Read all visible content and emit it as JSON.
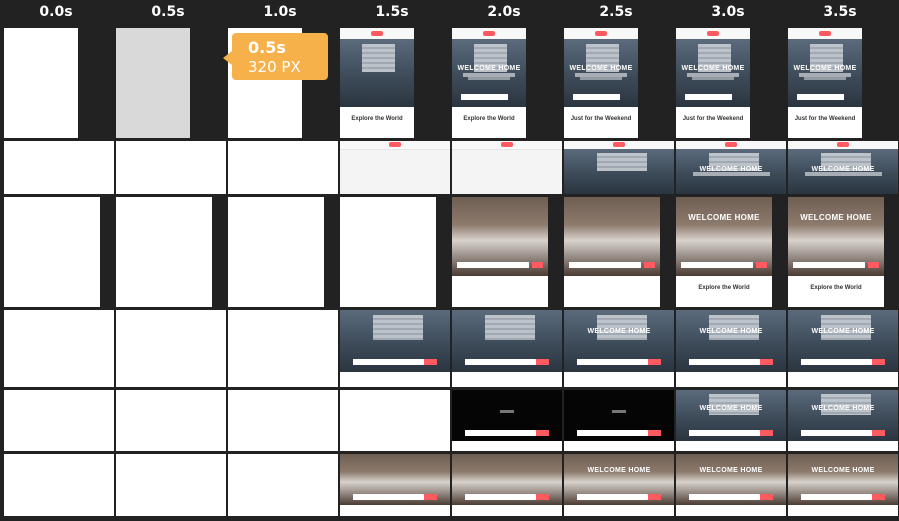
{
  "timeline": {
    "labels": [
      "0.0s",
      "0.5s",
      "1.0s",
      "1.5s",
      "2.0s",
      "2.5s",
      "3.0s",
      "3.5s"
    ]
  },
  "tooltip": {
    "time": "0.5s",
    "width": "320 PX"
  },
  "frames": {
    "headline": "WELCOME HOME",
    "below_text_a": "Explore the World",
    "below_text_b": "Just for the Weekend"
  },
  "colors": {
    "background": "#222222",
    "tooltip": "#f7b14a",
    "brand": "#ff5a5f"
  }
}
